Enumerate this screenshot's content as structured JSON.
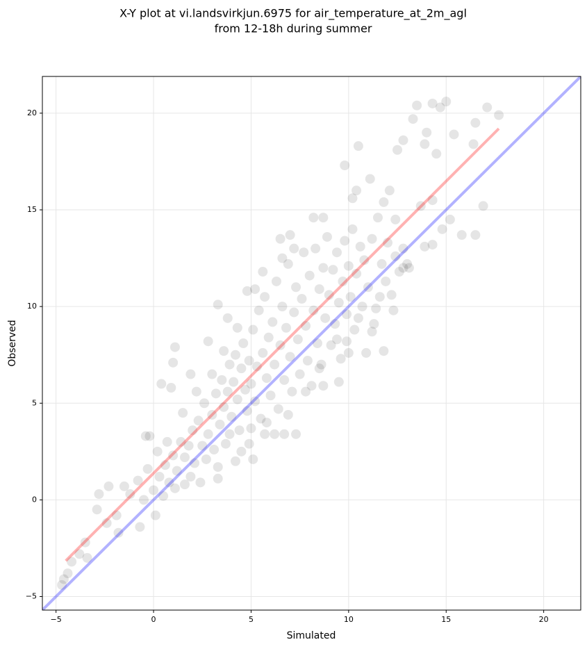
{
  "chart_data": {
    "type": "scatter",
    "title": [
      "X-Y plot at vi.landsvirkjun.6975 for air_temperature_at_2m_agl",
      "from 12-18h during summer"
    ],
    "x_label": "Simulated",
    "y_label": "Observed",
    "xlim": [
      -5.7,
      21.9
    ],
    "ylim": [
      -5.7,
      21.9
    ],
    "xticks": [
      {
        "value": -5,
        "label": "−5"
      },
      0,
      5,
      10,
      15,
      20
    ],
    "yticks": [
      {
        "value": -5,
        "label": "−5"
      },
      0,
      5,
      10,
      15,
      20
    ],
    "grid": true,
    "points": {
      "color": "#000000",
      "opacity": 0.1,
      "x": [
        15,
        14.3,
        13.5,
        17.1,
        17.7,
        13.3,
        16.5,
        14.7,
        14,
        15.4,
        12.8,
        13.9,
        16.4,
        10.5,
        12.5,
        14.5,
        9.8,
        16.9,
        13.7,
        14.3,
        15.2,
        15.8,
        16.5,
        14.8,
        13.9,
        14.3,
        13.1,
        11.1,
        10.4,
        11.8,
        12.1,
        10.2,
        8.7,
        8.2,
        7,
        6.5,
        3.3,
        3.8,
        2.8,
        1.1,
        1,
        0.4,
        0.9,
        1.9,
        -0.4,
        -0.2,
        -1.5,
        -2.3,
        -2.8,
        -2.9,
        -1.9,
        -0.7,
        0.1,
        -1.8,
        -2.4,
        -3.5,
        -3.8,
        -3.4,
        -4.2,
        -4.6,
        -4.7,
        -4.4,
        5.1,
        7.3,
        6.7,
        5.7,
        4.9,
        4.5,
        3.3,
        3.3,
        2.4,
        1.6,
        11.8,
        10.9,
        9.5,
        9.9,
        11.2,
        12.3,
        11.6,
        12.8,
        12.4,
        0,
        0.3,
        0.6,
        0.8,
        1.0,
        1.2,
        1.4,
        1.6,
        1.8,
        2.0,
        2.1,
        2.3,
        2.5,
        2.6,
        2.8,
        3.0,
        3.1,
        3.2,
        3.4,
        3.5,
        3.6,
        3.7,
        3.8,
        3.9,
        4.0,
        4.1,
        4.2,
        4.3,
        4.4,
        4.5,
        4.6,
        4.7,
        4.8,
        4.9,
        5.0,
        5.1,
        5.2,
        5.3,
        5.4,
        5.5,
        5.6,
        5.7,
        5.8,
        5.9,
        6.0,
        6.1,
        6.2,
        6.3,
        6.4,
        6.5,
        6.6,
        6.7,
        6.8,
        6.9,
        7.0,
        7.1,
        7.2,
        7.3,
        7.4,
        7.5,
        7.6,
        7.7,
        7.8,
        7.9,
        8.0,
        8.1,
        8.2,
        8.3,
        8.4,
        8.5,
        8.6,
        8.7,
        8.8,
        8.9,
        9.0,
        9.1,
        9.2,
        9.3,
        9.4,
        9.5,
        9.6,
        9.7,
        9.8,
        9.9,
        10.0,
        10.1,
        10.2,
        10.3,
        10.4,
        10.6,
        10.7,
        10.8,
        11.0,
        11.2,
        11.4,
        11.5,
        11.7,
        11.9,
        12.0,
        12.2,
        12.4,
        12.6,
        13.0,
        12.8,
        -1.2,
        -0.8,
        -0.5,
        -0.3,
        0.2,
        0.5,
        0.7,
        1.1,
        1.5,
        1.9,
        2.2,
        2.7,
        3.0,
        3.6,
        4.3,
        4.8,
        5.2,
        5.6,
        6.6,
        7.2,
        3.9,
        4.2,
        5.0,
        5.8,
        6.2,
        6.9,
        7.8,
        8.5,
        9.4,
        10.5,
        11.3,
        10.0,
        8.7
      ],
      "y": [
        20.6,
        20.5,
        20.4,
        20.3,
        19.9,
        19.7,
        19.5,
        20.3,
        19,
        18.9,
        18.6,
        18.4,
        18.4,
        18.3,
        18.1,
        17.9,
        17.3,
        15.2,
        15.2,
        15.5,
        14.5,
        13.7,
        13.7,
        14,
        13.1,
        13.2,
        12,
        16.6,
        16,
        15.4,
        16,
        15.6,
        14.6,
        14.6,
        13.7,
        13.5,
        10.1,
        9.4,
        8.2,
        7.9,
        7.1,
        6,
        5.8,
        6.5,
        3.3,
        3.3,
        0.7,
        0.7,
        0.3,
        -0.5,
        -0.8,
        -1.4,
        -0.8,
        -1.7,
        -1.2,
        -2.2,
        -2.8,
        -3,
        -3.2,
        -4.1,
        -4.4,
        -3.8,
        2.1,
        3.4,
        3.4,
        3.4,
        2.9,
        2.5,
        1.7,
        1.1,
        0.9,
        0.8,
        7.7,
        7.6,
        6.1,
        8.2,
        8.7,
        9.8,
        10.5,
        12,
        12.6,
        0.5,
        1.2,
        1.8,
        0.9,
        2.3,
        1.5,
        3.0,
        2.2,
        2.8,
        3.6,
        1.9,
        4.1,
        2.8,
        5.0,
        3.4,
        4.4,
        2.6,
        5.5,
        3.9,
        6.2,
        4.8,
        2.9,
        5.6,
        7.0,
        4.3,
        6.1,
        7.5,
        5.2,
        3.6,
        6.8,
        8.1,
        5.7,
        4.6,
        7.2,
        6.0,
        8.8,
        5.1,
        6.9,
        9.8,
        4.2,
        7.6,
        10.5,
        6.3,
        8.4,
        5.4,
        9.2,
        7.0,
        11.3,
        4.7,
        8.0,
        10.0,
        6.2,
        8.9,
        12.2,
        7.4,
        5.6,
        9.7,
        11.0,
        8.3,
        6.5,
        10.4,
        12.8,
        9.0,
        7.2,
        11.6,
        5.9,
        9.8,
        13.0,
        8.1,
        10.9,
        7.0,
        12.0,
        9.4,
        13.6,
        10.6,
        8.0,
        11.9,
        9.1,
        12.8,
        10.2,
        7.3,
        11.3,
        13.4,
        9.6,
        12.1,
        10.5,
        14.0,
        8.8,
        11.7,
        13.1,
        10.0,
        12.4,
        11.0,
        13.5,
        9.9,
        14.6,
        12.2,
        11.3,
        13.3,
        10.6,
        14.5,
        11.8,
        12.2,
        13.0,
        0.3,
        1.0,
        0.0,
        1.6,
        2.5,
        0.2,
        3.0,
        0.6,
        4.5,
        1.2,
        5.6,
        2.1,
        6.5,
        7.7,
        8.9,
        10.8,
        10.9,
        11.8,
        12.5,
        13.0,
        3.4,
        2.0,
        3.7,
        4.0,
        3.4,
        4.4,
        5.6,
        6.8,
        8.3,
        9.4,
        9.1,
        7.6,
        5.9
      ]
    },
    "lines": [
      {
        "color": "#0000ff",
        "opacity": 0.3,
        "x": [
          -5.7,
          21.9
        ],
        "y": [
          -5.7,
          21.9
        ]
      },
      {
        "color": "#ff0000",
        "opacity": 0.3,
        "x": [
          -4.5,
          17.7
        ],
        "y": [
          -3.15,
          19.2
        ]
      }
    ]
  }
}
